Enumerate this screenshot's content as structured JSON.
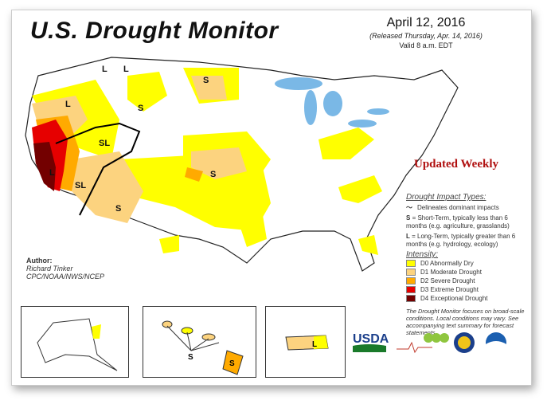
{
  "header": {
    "title": "U.S. Drought Monitor",
    "date": "April 12, 2016",
    "released": "(Released Thursday, Apr. 14, 2016)",
    "valid": "Valid 8 a.m. EDT"
  },
  "banner": "Updated Weekly",
  "author": {
    "label": "Author:",
    "name": "Richard Tinker",
    "org": "CPC/NOAA/NWS/NCEP"
  },
  "legend": {
    "impact_title": "Drought Impact Types:",
    "delineates": "Delineates dominant impacts",
    "s_key": "S",
    "s_text": "= Short-Term, typically less than 6 months (e.g. agriculture, grasslands)",
    "l_key": "L",
    "l_text": "= Long-Term, typically greater than 6 months (e.g. hydrology, ecology)",
    "intensity_title": "Intensity:",
    "levels": [
      {
        "label": "D0 Abnormally Dry",
        "color": "#ffff00"
      },
      {
        "label": "D1 Moderate Drought",
        "color": "#fcd37f"
      },
      {
        "label": "D2 Severe Drought",
        "color": "#ffaa00"
      },
      {
        "label": "D3 Extreme Drought",
        "color": "#e60000"
      },
      {
        "label": "D4 Exceptional Drought",
        "color": "#730000"
      }
    ],
    "note": "The Drought Monitor focuses on broad-scale conditions. Local conditions may vary. See accompanying text summary for forecast statements."
  },
  "map_labels": [
    "L",
    "L",
    "S",
    "S",
    "L",
    "SL",
    "S",
    "L",
    "SL",
    "S",
    "S",
    "S",
    "L"
  ],
  "logos": {
    "usda": "USDA"
  }
}
